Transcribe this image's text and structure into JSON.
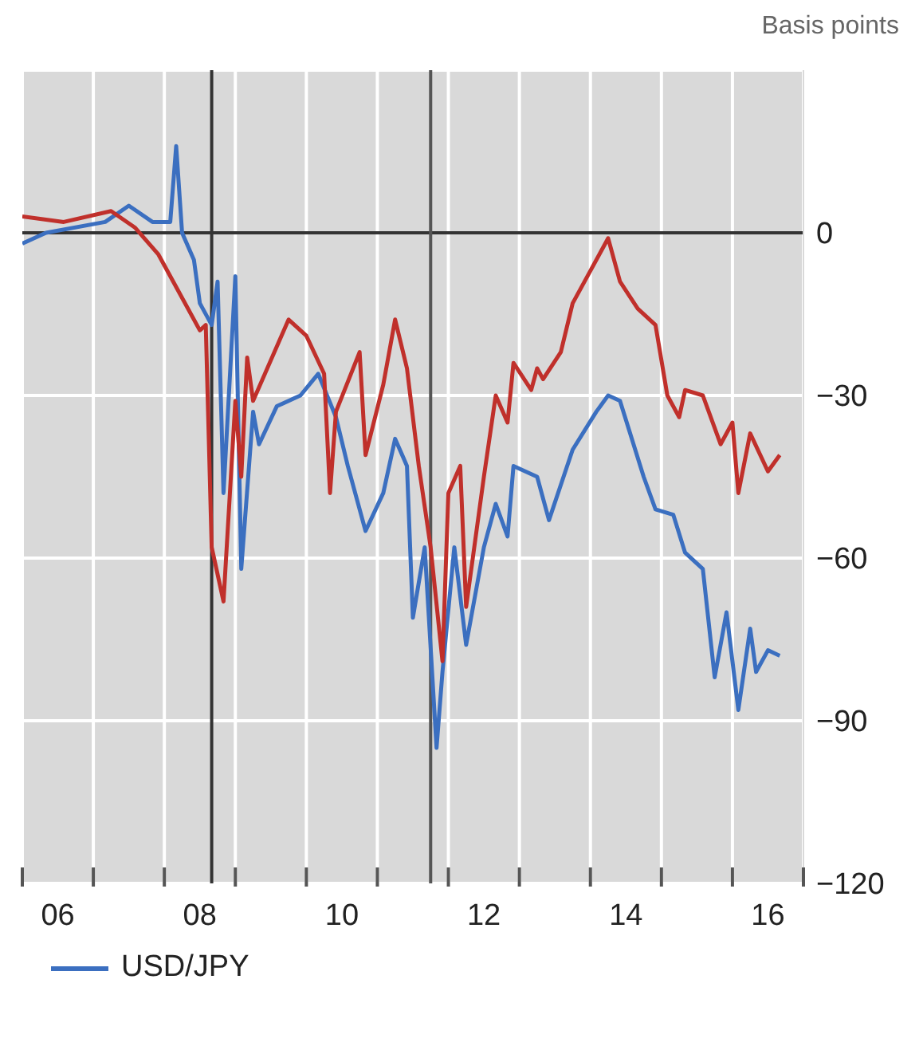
{
  "chart_data": {
    "type": "line",
    "ylabel": "Basis points",
    "xlim": [
      "2006-01",
      "2017-01"
    ],
    "xticks": [
      {
        "value": "2006-01",
        "label": null
      },
      {
        "value": "2007-01",
        "label": null
      },
      {
        "value": "2008-01",
        "label": null
      },
      {
        "value": "2009-01",
        "label": null
      },
      {
        "value": "2010-01",
        "label": null
      },
      {
        "value": "2011-01",
        "label": null
      },
      {
        "value": "2012-01",
        "label": null
      },
      {
        "value": "2013-01",
        "label": null
      },
      {
        "value": "2014-01",
        "label": null
      },
      {
        "value": "2015-01",
        "label": null
      },
      {
        "value": "2016-01",
        "label": null
      },
      {
        "value": "2017-01",
        "label": null
      },
      {
        "value": "2006-07",
        "label": "06"
      },
      {
        "value": "2008-07",
        "label": "08"
      },
      {
        "value": "2010-07",
        "label": "10"
      },
      {
        "value": "2012-07",
        "label": "12"
      },
      {
        "value": "2014-07",
        "label": "14"
      },
      {
        "value": "2016-07",
        "label": "16"
      }
    ],
    "ylim": [
      -120,
      30
    ],
    "yticks": [
      0,
      -30,
      -60,
      -90,
      -120
    ],
    "grid": true,
    "legend": "bottom",
    "marker": "none",
    "line_style": "solid",
    "ref_lines": [
      {
        "axis": "y",
        "value": 0,
        "color": "#333333"
      },
      {
        "axis": "x",
        "value": "2008-09",
        "color": "#333333"
      },
      {
        "axis": "x",
        "value": "2011-10",
        "color": "#555555"
      }
    ],
    "series": [
      {
        "name": "USD/JPY",
        "color": "#3b6fc0",
        "x": [
          "2006-01",
          "2006-05",
          "2007-03",
          "2007-07",
          "2007-11",
          "2008-02",
          "2008-03",
          "2008-04",
          "2008-06",
          "2008-07",
          "2008-09",
          "2008-10",
          "2008-11",
          "2009-01",
          "2009-02",
          "2009-04",
          "2009-05",
          "2009-08",
          "2009-12",
          "2010-03",
          "2010-06",
          "2010-08",
          "2010-11",
          "2011-02",
          "2011-04",
          "2011-06",
          "2011-07",
          "2011-09",
          "2011-11",
          "2011-12",
          "2012-02",
          "2012-04",
          "2012-07",
          "2012-09",
          "2012-11",
          "2012-12",
          "2013-04",
          "2013-06",
          "2013-10",
          "2014-02",
          "2014-04",
          "2014-06",
          "2014-10",
          "2014-12",
          "2015-03",
          "2015-05",
          "2015-08",
          "2015-10",
          "2015-12",
          "2016-02",
          "2016-04",
          "2016-05",
          "2016-07",
          "2016-09"
        ],
        "values": [
          -2,
          0,
          2,
          5,
          2,
          2,
          16,
          0,
          -5,
          -13,
          -17,
          -9,
          -48,
          -8,
          -62,
          -33,
          -39,
          -32,
          -30,
          -26,
          -34,
          -43,
          -55,
          -48,
          -38,
          -43,
          -71,
          -58,
          -95,
          -81,
          -58,
          -76,
          -58,
          -50,
          -56,
          -43,
          -45,
          -53,
          -40,
          -33,
          -30,
          -31,
          -45,
          -51,
          -52,
          -59,
          -62,
          -82,
          -70,
          -88,
          -73,
          -81,
          -77,
          -78
        ]
      },
      {
        "color": "#c0302b",
        "x": [
          "2006-01",
          "2006-08",
          "2007-04",
          "2007-08",
          "2007-12",
          "2008-03",
          "2008-07",
          "2008-08",
          "2008-09",
          "2008-11",
          "2009-01",
          "2009-02",
          "2009-03",
          "2009-04",
          "2009-06",
          "2009-10",
          "2010-01",
          "2010-04",
          "2010-05",
          "2010-06",
          "2010-10",
          "2010-11",
          "2011-02",
          "2011-04",
          "2011-06",
          "2011-08",
          "2011-10",
          "2011-12",
          "2012-01",
          "2012-03",
          "2012-04",
          "2012-07",
          "2012-09",
          "2012-11",
          "2012-12",
          "2013-03",
          "2013-04",
          "2013-05",
          "2013-08",
          "2013-10",
          "2014-01",
          "2014-04",
          "2014-06",
          "2014-09",
          "2014-12",
          "2015-02",
          "2015-04",
          "2015-05",
          "2015-08",
          "2015-11",
          "2016-01",
          "2016-02",
          "2016-04",
          "2016-07",
          "2016-09"
        ],
        "values": [
          3,
          2,
          4,
          1,
          -4,
          -10,
          -18,
          -17,
          -58,
          -68,
          -31,
          -45,
          -23,
          -31,
          -26,
          -16,
          -19,
          -26,
          -48,
          -33,
          -22,
          -41,
          -28,
          -16,
          -25,
          -43,
          -58,
          -79,
          -48,
          -43,
          -69,
          -45,
          -30,
          -35,
          -24,
          -29,
          -25,
          -27,
          -22,
          -13,
          -7,
          -1,
          -9,
          -14,
          -17,
          -30,
          -34,
          -29,
          -30,
          -39,
          -35,
          -48,
          -37,
          -44,
          -41
        ]
      }
    ]
  }
}
